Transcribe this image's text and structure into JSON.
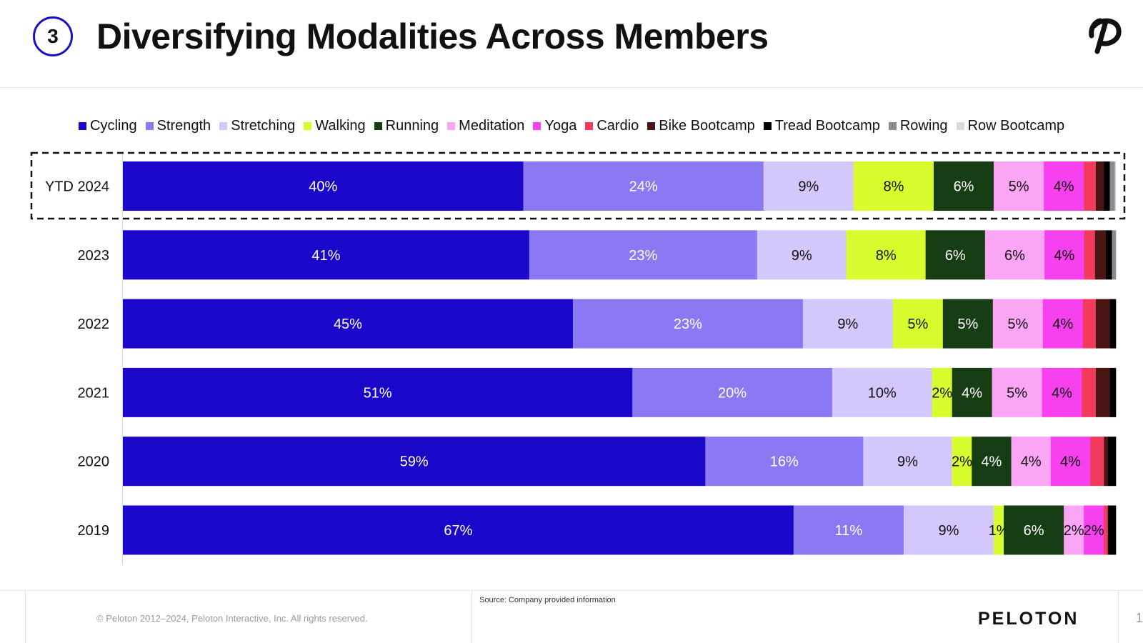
{
  "header": {
    "section_number": "3",
    "title": "Diversifying Modalities Across Members"
  },
  "footer": {
    "copyright": "© Peloton 2012–2024, Peloton Interactive, Inc. All rights reserved.",
    "source": "Source: Company provided information",
    "wordmark": "PELOTON",
    "page_number": "1"
  },
  "chart_data": {
    "type": "bar",
    "orientation": "horizontal",
    "stacked": "percent",
    "categories": [
      "YTD 2024",
      "2023",
      "2022",
      "2021",
      "2020",
      "2019"
    ],
    "highlighted_category": "YTD 2024",
    "legend_position": "top",
    "series": [
      {
        "name": "Cycling",
        "color": "#1a07c9",
        "label_color": "#ffffff",
        "values": [
          40,
          41,
          45,
          51,
          59,
          67
        ],
        "labels": [
          "40%",
          "41%",
          "45%",
          "51%",
          "59%",
          "67%"
        ]
      },
      {
        "name": "Strength",
        "color": "#8b78f3",
        "label_color": "#ffffff",
        "values": [
          24,
          23,
          23,
          20,
          16,
          11
        ],
        "labels": [
          "24%",
          "23%",
          "23%",
          "20%",
          "16%",
          "11%"
        ]
      },
      {
        "name": "Stretching",
        "color": "#d3c7fb",
        "label_color": "#111111",
        "values": [
          9,
          9,
          9,
          10,
          9,
          9
        ],
        "labels": [
          "9%",
          "9%",
          "9%",
          "10%",
          "9%",
          "9%"
        ]
      },
      {
        "name": "Walking",
        "color": "#d7fd2f",
        "label_color": "#111111",
        "values": [
          8,
          8,
          5,
          2,
          2,
          1
        ],
        "labels": [
          "8%",
          "8%",
          "5%",
          "2%",
          "2%",
          "1%"
        ]
      },
      {
        "name": "Running",
        "color": "#173d15",
        "label_color": "#ffffff",
        "values": [
          6,
          6,
          5,
          4,
          4,
          6
        ],
        "labels": [
          "6%",
          "6%",
          "5%",
          "4%",
          "4%",
          "6%"
        ]
      },
      {
        "name": "Meditation",
        "color": "#fba6f5",
        "label_color": "#111111",
        "values": [
          5,
          6,
          5,
          5,
          4,
          2
        ],
        "labels": [
          "5%",
          "6%",
          "5%",
          "5%",
          "4%",
          "2%"
        ]
      },
      {
        "name": "Yoga",
        "color": "#f741ef",
        "label_color": "#111111",
        "values": [
          4,
          4,
          4,
          4,
          4,
          2
        ],
        "labels": [
          "4%",
          "4%",
          "4%",
          "4%",
          "4%",
          "2%"
        ]
      },
      {
        "name": "Cardio",
        "color": "#f23a5d",
        "label_color": "#111111",
        "values": [
          1.2,
          1.1,
          1.3,
          1.4,
          1.4,
          0.4
        ],
        "labels": [
          "",
          "",
          "",
          "",
          "",
          ""
        ]
      },
      {
        "name": "Bike Bootcamp",
        "color": "#4a1613",
        "label_color": "#ffffff",
        "values": [
          0.8,
          1.1,
          1.4,
          1.4,
          0.4,
          0
        ],
        "labels": [
          "",
          "",
          "",
          "",
          "",
          ""
        ]
      },
      {
        "name": "Tread Bootcamp",
        "color": "#000000",
        "label_color": "#ffffff",
        "values": [
          0.6,
          0.6,
          0.6,
          0.6,
          0.8,
          0.8
        ],
        "labels": [
          "",
          "",
          "",
          "",
          "",
          ""
        ]
      },
      {
        "name": "Rowing",
        "color": "#878c94",
        "label_color": "#ffffff",
        "values": [
          0.5,
          0.4,
          0,
          0,
          0,
          0
        ],
        "labels": [
          "",
          "",
          "",
          "",
          "",
          ""
        ]
      },
      {
        "name": "Row Bootcamp",
        "color": "#dadada",
        "label_color": "#111111",
        "values": [
          0.1,
          0,
          0,
          0,
          0,
          0
        ],
        "labels": [
          "",
          "",
          "",
          "",
          "",
          ""
        ]
      }
    ],
    "xlim": [
      0,
      100
    ]
  }
}
